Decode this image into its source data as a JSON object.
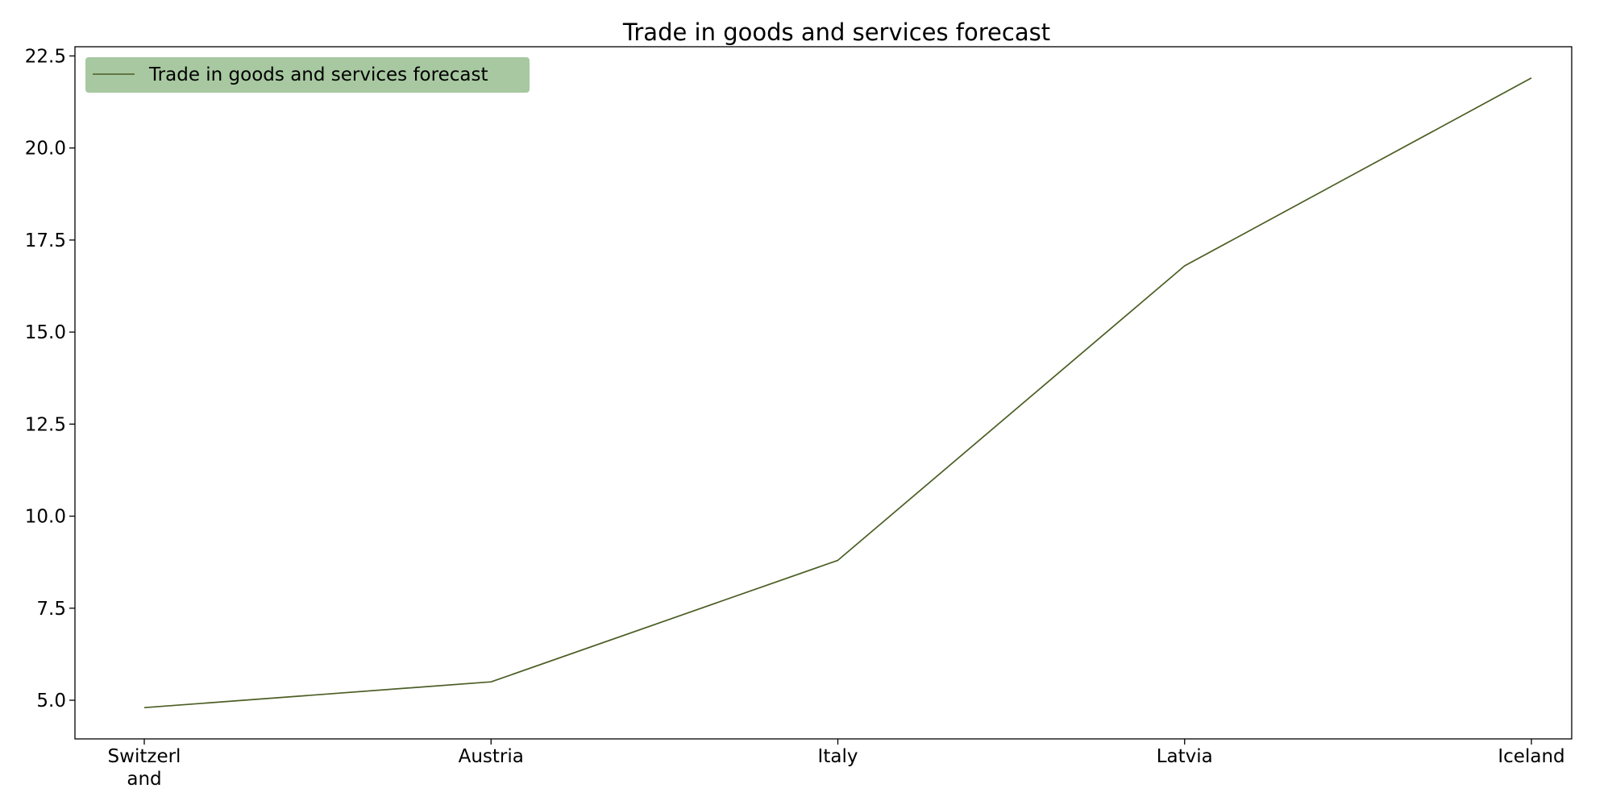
{
  "chart_data": {
    "type": "line",
    "title": "Trade in goods and services forecast",
    "xlabel": "",
    "ylabel": "",
    "categories": [
      [
        "Switzerl",
        "and"
      ],
      [
        "Austria"
      ],
      [
        "Italy"
      ],
      [
        "Latvia"
      ],
      [
        "Iceland"
      ]
    ],
    "series": [
      {
        "name": "Trade in goods and services forecast",
        "values": [
          4.8,
          5.5,
          8.8,
          16.8,
          21.9
        ],
        "color": "#4b5e24"
      }
    ],
    "ylim": [
      3.95,
      22.75
    ],
    "yticks": [
      5.0,
      7.5,
      10.0,
      12.5,
      15.0,
      17.5,
      20.0,
      22.5
    ],
    "ytick_labels": [
      "5.0",
      "7.5",
      "10.0",
      "12.5",
      "15.0",
      "17.5",
      "20.0",
      "22.5"
    ],
    "grid": false,
    "legend": {
      "placement": "top-left",
      "background": "#a7c8a0"
    }
  }
}
